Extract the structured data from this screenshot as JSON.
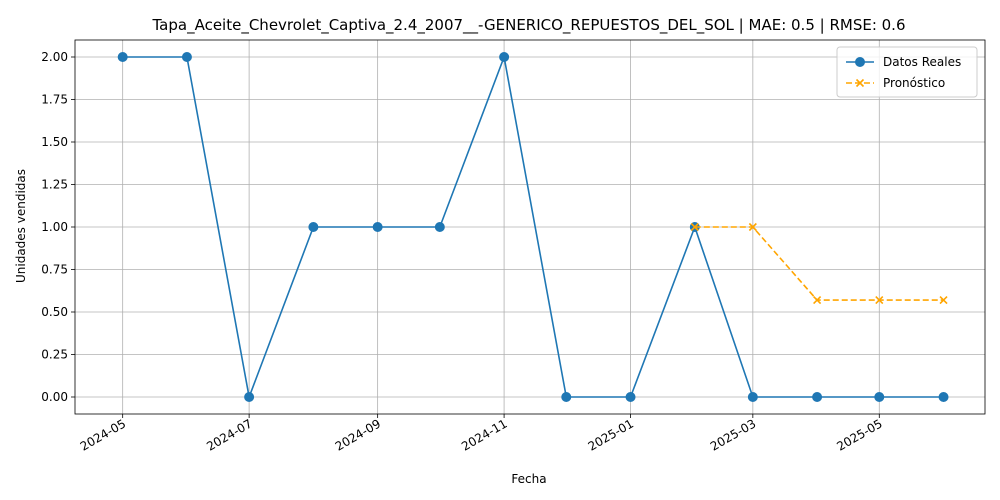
{
  "chart_data": {
    "type": "line",
    "title": "Tapa_Aceite_Chevrolet_Captiva_2.4_2007__-GENERICO_REPUESTOS_DEL_SOL | MAE: 0.5 | RMSE: 0.6",
    "xlabel": "Fecha",
    "ylabel": "Unidades vendidas",
    "x_ticks": [
      "2024-05",
      "2024-07",
      "2024-09",
      "2024-11",
      "2025-01",
      "2025-03",
      "2025-05"
    ],
    "y_ticks": [
      "0.00",
      "0.25",
      "0.50",
      "0.75",
      "1.00",
      "1.25",
      "1.50",
      "1.75",
      "2.00"
    ],
    "ylim": [
      -0.1,
      2.1
    ],
    "xlim": [
      "2024-04-08",
      "2025-06-21"
    ],
    "grid": true,
    "legend_position": "top-right",
    "series": [
      {
        "name": "Datos Reales",
        "color": "#1f77b4",
        "style": "solid",
        "marker": "circle",
        "x": [
          "2024-05-01",
          "2024-06-01",
          "2024-07-01",
          "2024-08-01",
          "2024-09-01",
          "2024-10-01",
          "2024-11-01",
          "2024-12-01",
          "2025-01-01",
          "2025-02-01",
          "2025-03-01",
          "2025-04-01",
          "2025-05-01",
          "2025-06-01"
        ],
        "y": [
          2,
          2,
          0,
          1,
          1,
          1,
          2,
          0,
          0,
          1,
          0,
          0,
          0,
          0
        ]
      },
      {
        "name": "Pronóstico",
        "color": "#ffa500",
        "style": "dashed",
        "marker": "x",
        "x": [
          "2025-02-01",
          "2025-03-01",
          "2025-04-01",
          "2025-05-01",
          "2025-06-01"
        ],
        "y": [
          1.0,
          1.0,
          0.57,
          0.57,
          0.57
        ]
      }
    ]
  }
}
